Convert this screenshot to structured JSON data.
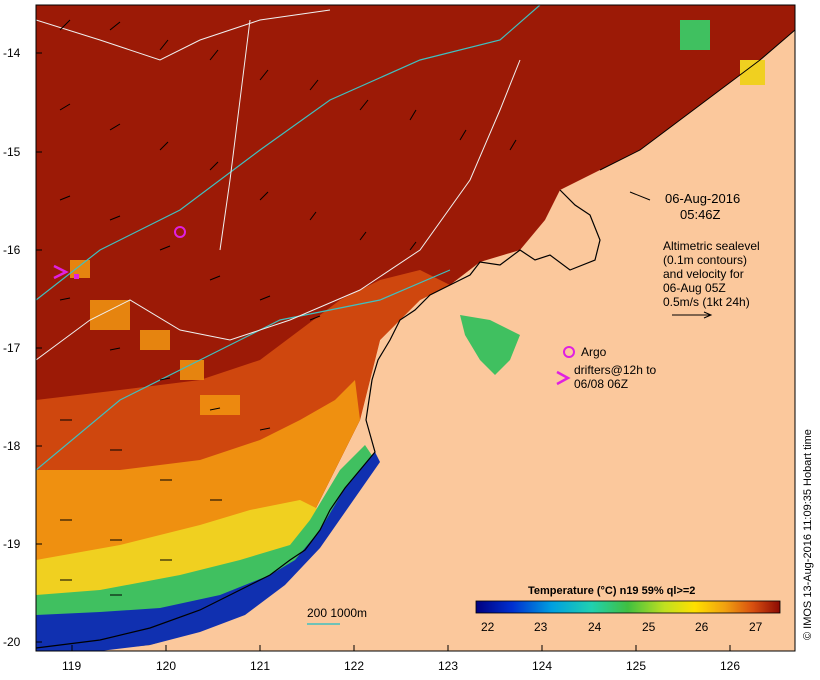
{
  "map": {
    "lon_ticks": [
      "119",
      "120",
      "121",
      "122",
      "123",
      "124",
      "125",
      "126"
    ],
    "lat_ticks": [
      "-14",
      "-15",
      "-16",
      "-17",
      "-18",
      "-19",
      "-20"
    ],
    "timestamp": {
      "date": "06-Aug-2016",
      "time": "05:46Z"
    },
    "altimetry_note": [
      "Altimetric sealevel",
      "(0.1m contours)",
      "and velocity for",
      "06-Aug 05Z",
      "0.5m/s (1kt 24h)"
    ],
    "argo_label": "Argo",
    "drifters_label": [
      "drifters@12h to",
      "06/08 06Z"
    ],
    "depth_legend": "200  1000m",
    "colorbar": {
      "title": "Temperature (°C) n19 59% ql>=2",
      "ticks": [
        "22",
        "23",
        "24",
        "25",
        "26",
        "27"
      ]
    },
    "credit": "© IMOS 13-Aug-2016 11:09:35 Hobart time",
    "colors": {
      "land": "#fbc89c",
      "warm_sea": "#9c1a06",
      "mid_sea": "#d85010",
      "orange_sea": "#ef9010",
      "cool_sea": "#40c060",
      "cold_sea": "#1030b0",
      "argo_marker": "#e020e0",
      "contour_cyan": "#40c0c0",
      "contour_white": "#f0f0f0"
    }
  }
}
